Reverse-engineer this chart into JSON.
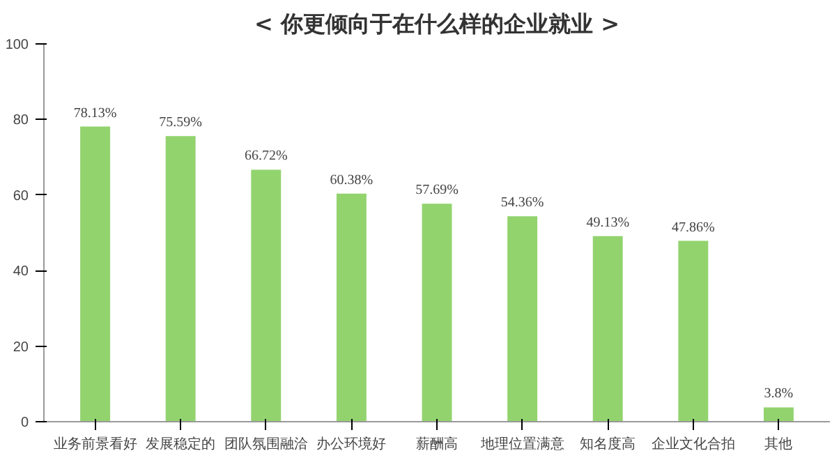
{
  "chart_data": {
    "type": "bar",
    "title": "< 你更倾向于在什么样的企业就业 >",
    "categories": [
      "业务前景看好",
      "发展稳定的",
      "团队氛围融洽",
      "办公环境好",
      "薪酬高",
      "地理位置满意",
      "知名度高",
      "企业文化合拍",
      "其他"
    ],
    "values": [
      78.13,
      75.59,
      66.72,
      60.38,
      57.69,
      54.36,
      49.13,
      47.86,
      3.8
    ],
    "color": "#92d36e",
    "ylim": [
      0,
      100
    ],
    "yticks": [
      0,
      20,
      40,
      60,
      80,
      100
    ],
    "grid": false,
    "value_labels": [
      "78.13%",
      "75.59%",
      "66.72%",
      "60.38%",
      "57.69%",
      "54.36%",
      "49.13%",
      "47.86%",
      "3.8%"
    ]
  }
}
